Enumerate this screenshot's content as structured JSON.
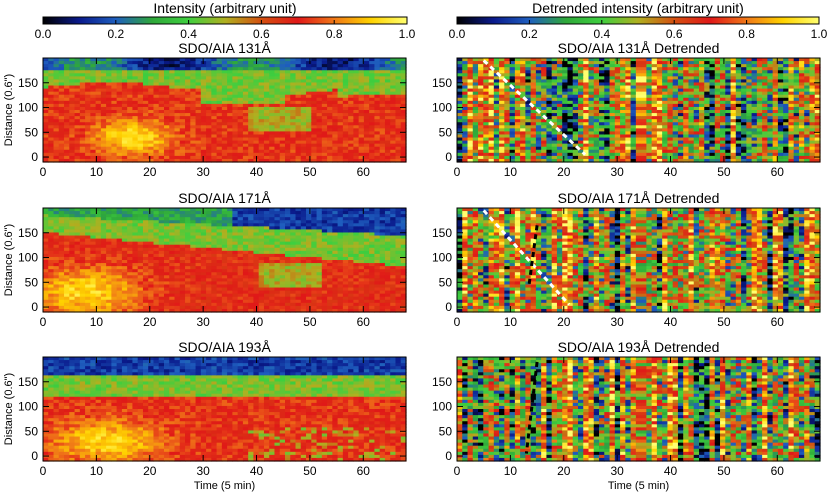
{
  "colors": {
    "axis": "#000000",
    "ridge_white": "#ffffff",
    "ridge_black": "#000000"
  },
  "colormap": [
    "#000000",
    "#0a1a8c",
    "#1f5fbf",
    "#2fa83a",
    "#3fcf3f",
    "#b0b020",
    "#d45010",
    "#e01818",
    "#f07818",
    "#ffd200",
    "#ffff70"
  ],
  "colorbars": [
    {
      "label": "Intensity (arbitrary unit)",
      "ticks": [
        "0.0",
        "0.2",
        "0.4",
        "0.6",
        "0.8",
        "1.0"
      ],
      "range": [
        0,
        1
      ]
    },
    {
      "label": "Detrended intensity (arbitrary unit)",
      "ticks": [
        "0.0",
        "0.2",
        "0.4",
        "0.6",
        "0.8",
        "1.0"
      ],
      "range": [
        0,
        1
      ]
    }
  ],
  "chart_data": [
    {
      "type": "heatmap",
      "title": "SDO/AIA 131Å",
      "ylabel": "Distance (0.6\")",
      "xlabel": "",
      "x_ticks": [
        "0",
        "10",
        "20",
        "30",
        "40",
        "50",
        "60"
      ],
      "y_ticks": [
        "0",
        "50",
        "100",
        "150"
      ],
      "xlim": [
        0,
        68
      ],
      "ylim": [
        0,
        200
      ],
      "detrended": false,
      "channel": 131,
      "guide_lines": []
    },
    {
      "type": "heatmap",
      "title": "SDO/AIA 131Å Detrended",
      "ylabel": "",
      "xlabel": "",
      "x_ticks": [
        "0",
        "10",
        "20",
        "30",
        "40",
        "50",
        "60"
      ],
      "y_ticks": [
        "0",
        "50",
        "100",
        "150"
      ],
      "xlim": [
        0,
        68
      ],
      "ylim": [
        0,
        200
      ],
      "detrended": true,
      "channel": 131,
      "guide_lines": [
        {
          "color": "white",
          "x0": 5,
          "y0": 195,
          "x1": 24,
          "y1": 5
        }
      ]
    },
    {
      "type": "heatmap",
      "title": "SDO/AIA 171Å",
      "ylabel": "Distance (0.6\")",
      "xlabel": "",
      "x_ticks": [
        "0",
        "10",
        "20",
        "30",
        "40",
        "50",
        "60"
      ],
      "y_ticks": [
        "0",
        "50",
        "100",
        "150"
      ],
      "xlim": [
        0,
        68
      ],
      "ylim": [
        0,
        200
      ],
      "detrended": false,
      "channel": 171,
      "guide_lines": []
    },
    {
      "type": "heatmap",
      "title": "SDO/AIA 171Å Detrended",
      "ylabel": "",
      "xlabel": "",
      "x_ticks": [
        "0",
        "10",
        "20",
        "30",
        "40",
        "50",
        "60"
      ],
      "y_ticks": [
        "0",
        "50",
        "100",
        "150"
      ],
      "xlim": [
        0,
        68
      ],
      "ylim": [
        0,
        200
      ],
      "detrended": true,
      "channel": 171,
      "guide_lines": [
        {
          "color": "white",
          "x0": 5,
          "y0": 195,
          "x1": 21,
          "y1": 5
        },
        {
          "color": "black",
          "x0": 15,
          "y0": 165,
          "x1": 13.5,
          "y1": 45
        }
      ]
    },
    {
      "type": "heatmap",
      "title": "SDO/AIA 193Å",
      "ylabel": "Distance (0.6\")",
      "xlabel": "Time (5 min)",
      "x_ticks": [
        "0",
        "10",
        "20",
        "30",
        "40",
        "50",
        "60"
      ],
      "y_ticks": [
        "0",
        "50",
        "100",
        "150"
      ],
      "xlim": [
        0,
        68
      ],
      "ylim": [
        0,
        200
      ],
      "detrended": false,
      "channel": 193,
      "guide_lines": []
    },
    {
      "type": "heatmap",
      "title": "SDO/AIA 193Å Detrended",
      "ylabel": "",
      "xlabel": "Time (5 min)",
      "x_ticks": [
        "0",
        "10",
        "20",
        "30",
        "40",
        "50",
        "60"
      ],
      "y_ticks": [
        "0",
        "50",
        "100",
        "150"
      ],
      "xlim": [
        0,
        68
      ],
      "ylim": [
        0,
        200
      ],
      "detrended": true,
      "channel": 193,
      "guide_lines": [
        {
          "color": "black",
          "x0": 15,
          "y0": 190,
          "x1": 13,
          "y1": 5
        }
      ]
    }
  ]
}
